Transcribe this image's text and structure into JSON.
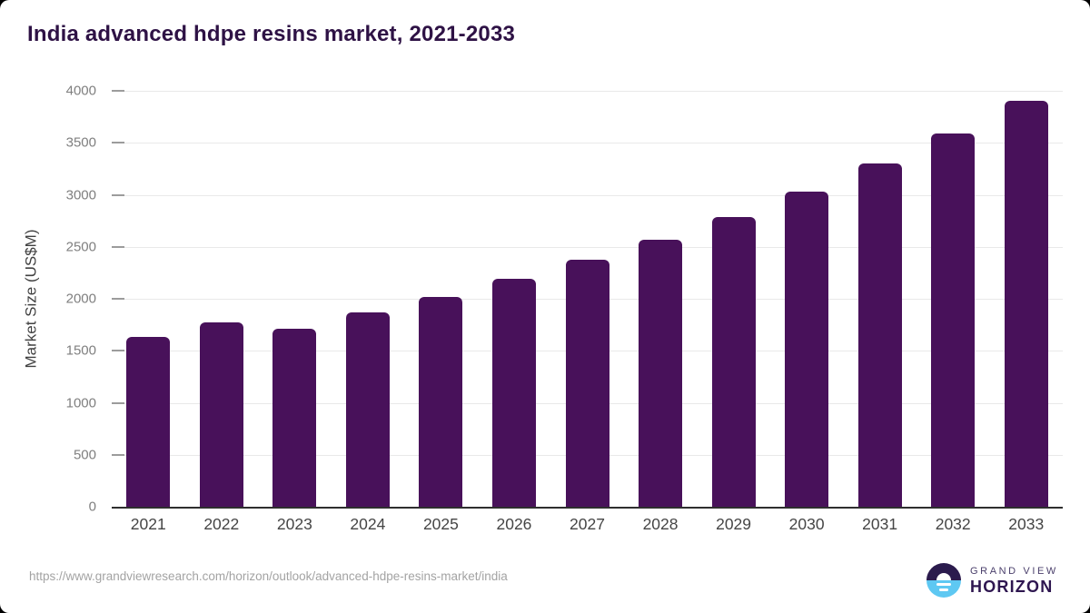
{
  "page": {
    "background": "#000000",
    "card_background": "#ffffff"
  },
  "chart_data": {
    "type": "bar",
    "title": "India advanced hdpe resins market, 2021-2033",
    "categories": [
      "2021",
      "2022",
      "2023",
      "2024",
      "2025",
      "2026",
      "2027",
      "2028",
      "2029",
      "2030",
      "2031",
      "2032",
      "2033"
    ],
    "values": [
      1630,
      1770,
      1710,
      1865,
      2015,
      2190,
      2375,
      2570,
      2785,
      3035,
      3305,
      3590,
      3905
    ],
    "xlabel": "",
    "ylabel": "Market Size (US$M)",
    "ylim": [
      0,
      4000
    ],
    "ytick_step": 500,
    "ytick_labels": [
      "0",
      "500",
      "1000",
      "1500",
      "2000",
      "2500",
      "3000",
      "3500",
      "4000"
    ],
    "grid": "horizontal",
    "legend": "none",
    "bar_color": "#48115a",
    "gridline_color": "#e9e9e9",
    "axis_line_color": "#2f2f2f",
    "title_color": "#2e1245"
  },
  "footer": {
    "source_url": "https://www.grandviewresearch.com/horizon/outlook/advanced-hdpe-resins-market/india",
    "logo": {
      "icon": "sunrise-horizon-icon",
      "icon_top_color": "#2b1b4d",
      "icon_bottom_color": "#5ec8f2",
      "line1": "GRAND VIEW",
      "line2": "HORIZON"
    }
  }
}
